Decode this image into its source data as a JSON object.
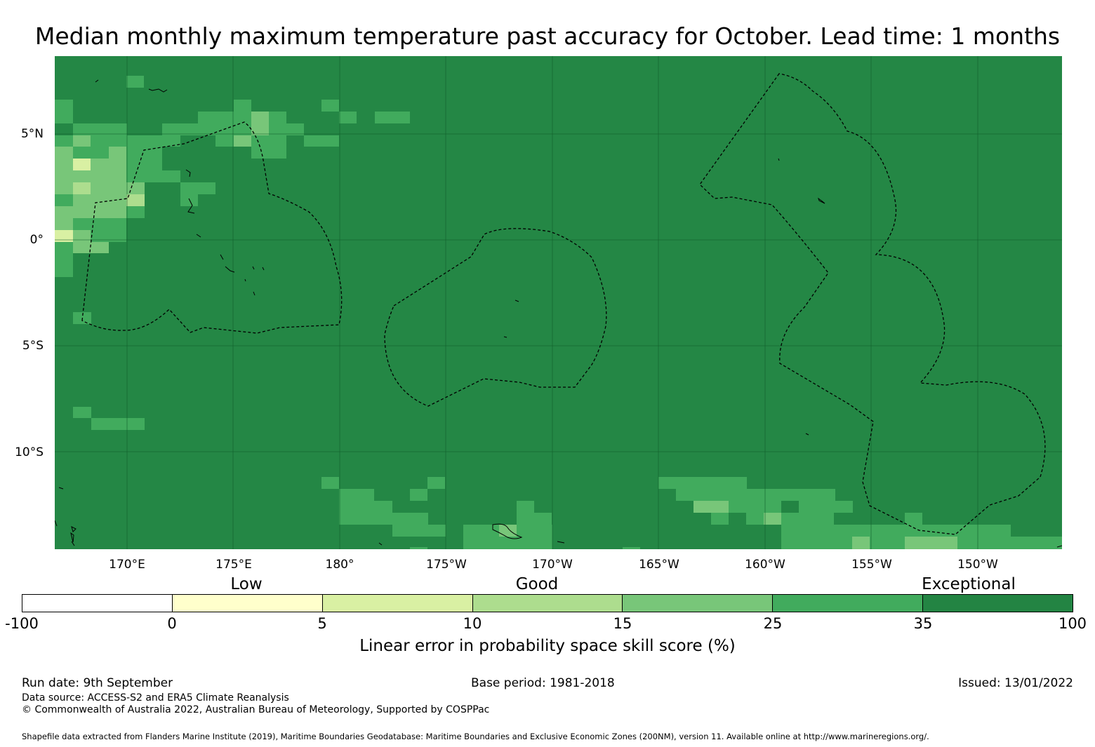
{
  "title": "Median monthly maximum temperature past accuracy for October. Lead time: 1 months",
  "map": {
    "lat_labels": [
      "5°N",
      "0°",
      "5°S",
      "10°S"
    ],
    "lon_labels": [
      "170°E",
      "175°E",
      "180°",
      "175°W",
      "170°W",
      "165°W",
      "160°W",
      "155°W",
      "150°W"
    ],
    "background_color": "#248745"
  },
  "colorbar": {
    "categories": [
      "Low",
      "Good",
      "Exceptional"
    ],
    "ticks": [
      "-100",
      "0",
      "5",
      "10",
      "15",
      "25",
      "35",
      "100"
    ],
    "colors": [
      "#ffffff",
      "#ffffcc",
      "#d9f0a3",
      "#addd8e",
      "#78c679",
      "#41ab5d",
      "#238443"
    ],
    "label": "Linear error in probability space skill score (%)"
  },
  "footer": {
    "run_date": "Run date: 9th September",
    "base_period": "Base period: 1981-2018",
    "issued": "Issued: 13/01/2022",
    "data_source": "Data source: ACCESS-S2 and ERA5 Climate Reanalysis",
    "copyright": "© Commonwealth of Australia 2022, Australian Bureau of Meteorology, Supported by COSPPac",
    "shapefile": "Shapefile data extracted from Flanders Marine Institute (2019), Maritime Boundaries Geodatabase: Maritime Boundaries and Exclusive Economic Zones (200NM), version 11. Available online at http://www.marineregions.org/."
  }
}
